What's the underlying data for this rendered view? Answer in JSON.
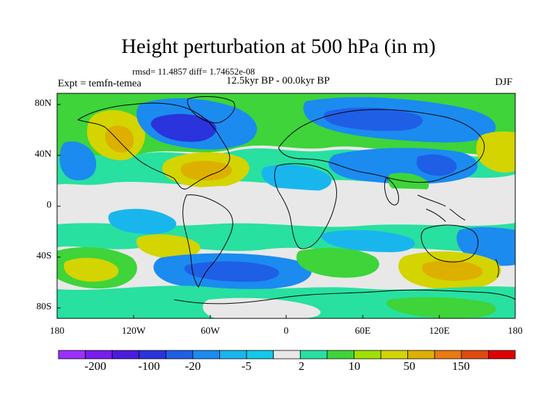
{
  "title": "Height perturbation at 500 hPa (in m)",
  "stats": "rmsd= 11.4857 diff= 1.74652e-08",
  "period": "12.5kyr BP - 00.0kyr BP",
  "experiment": "Expt = temfn-temea",
  "season": "DJF",
  "lat_labels": [
    "80N",
    "40N",
    "0",
    "40S",
    "80S"
  ],
  "lon_labels": [
    "180",
    "120W",
    "60W",
    "0",
    "60E",
    "120E",
    "180"
  ],
  "colorbar": {
    "colors": [
      "#9b30ff",
      "#7a1cf0",
      "#4b1be0",
      "#2a33dc",
      "#1f5fe6",
      "#1b8bf0",
      "#19b6ee",
      "#12c9e8",
      "#e8e8e8",
      "#28e0a0",
      "#3ed43a",
      "#a0e000",
      "#d4d400",
      "#ddb000",
      "#e87a10",
      "#e04a10",
      "#e00000"
    ],
    "labels": [
      "-200",
      "-100",
      "-20",
      "-5",
      "2",
      "10",
      "50",
      "150"
    ]
  },
  "map_colors": {
    "neutral": "#e8e8e8",
    "light_blue": "#19b6ee",
    "mid_blue": "#1b8bf0",
    "blue": "#1f5fe6",
    "deep_blue": "#2a33dc",
    "teal": "#28e0a0",
    "green": "#3ed43a",
    "yellow": "#d4d400",
    "gold": "#ddb000",
    "coast": "#000000"
  }
}
